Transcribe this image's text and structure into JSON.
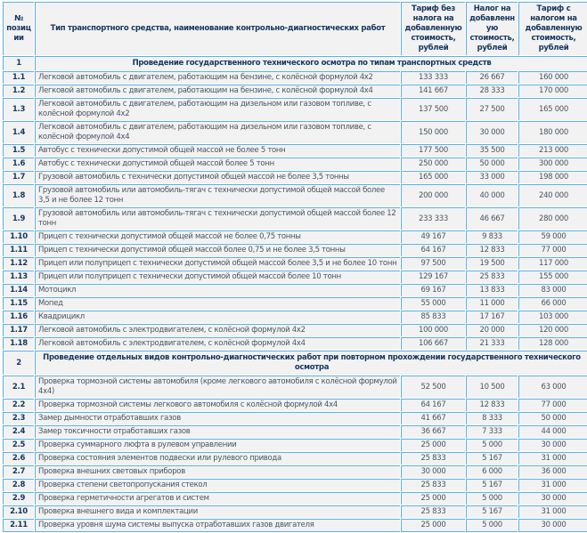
{
  "colors": {
    "border": "#58b2e3",
    "cell_background": "#f2f2f2",
    "heading_text": "#17375e",
    "body_text": "#4a5560"
  },
  "table": {
    "columns": [
      {
        "label": "№ позиции"
      },
      {
        "label": "Тип транспортного средства, наименование контрольно-диагностических работ"
      },
      {
        "label": "Тариф без налога на добавленную стоимость, рублей"
      },
      {
        "label": "Налог на добавленную стоимость, рублей"
      },
      {
        "label": "Тариф с налогом на добавленную стоимость, рублей"
      }
    ],
    "sections": [
      {
        "num": "1",
        "title": "Проведение государственного технического осмотра по типам транспортных средств",
        "rows": [
          {
            "num": "1.1",
            "name": "Легковой автомобиль с двигателем, работающим на бензине, с колёсной формулой 4x2",
            "tariff_no_vat": "133 333",
            "vat": "26 667",
            "tariff_with_vat": "160 000"
          },
          {
            "num": "1.2",
            "name": "Легковой автомобиль с двигателем, работающим на бензине, с колёсной формулой 4x4",
            "tariff_no_vat": "141 667",
            "vat": "28 333",
            "tariff_with_vat": "170 000"
          },
          {
            "num": "1.3",
            "name": "Легковой автомобиль с двигателем, работающим на дизельном или газовом топливе, с колёсной формулой 4x2",
            "tariff_no_vat": "137 500",
            "vat": "27 500",
            "tariff_with_vat": "165 000"
          },
          {
            "num": "1.4",
            "name": "Легковой автомобиль с двигателем, работающим на дизельном или газовом топливе, с колёсной формулой 4x4",
            "tariff_no_vat": "150 000",
            "vat": "30 000",
            "tariff_with_vat": "180 000"
          },
          {
            "num": "1.5",
            "name": "Автобус с технически допустимой общей массой не более 5 тонн",
            "tariff_no_vat": "177 500",
            "vat": "35 500",
            "tariff_with_vat": "213 000"
          },
          {
            "num": "1.6",
            "name": "Автобус с технически допустимой общей массой более 5 тонн",
            "tariff_no_vat": "250 000",
            "vat": "50 000",
            "tariff_with_vat": "300 000"
          },
          {
            "num": "1.7",
            "name": "Грузовой автомобиль с технически допустимой общей массой не более 3,5 тонны",
            "tariff_no_vat": "165 000",
            "vat": "33 000",
            "tariff_with_vat": "198 000"
          },
          {
            "num": "1.8",
            "name": "Грузовой автомобиль или автомобиль-тягач с технически допустимой общей массой более 3,5 и не более 12 тонн",
            "tariff_no_vat": "200 000",
            "vat": "40 000",
            "tariff_with_vat": "240 000"
          },
          {
            "num": "1.9",
            "name": "Грузовой автомобиль или автомобиль-тягач с технически допустимой общей массой более 12 тонн",
            "tariff_no_vat": "233 333",
            "vat": "46 667",
            "tariff_with_vat": "280 000"
          },
          {
            "num": "1.10",
            "name": "Прицеп с технически допустимой общей массой не более 0,75 тонны",
            "tariff_no_vat": "49 167",
            "vat": "9 833",
            "tariff_with_vat": "59 000"
          },
          {
            "num": "1.11",
            "name": "Прицеп с технически допустимой общей массой более 0,75 и не более 3,5 тонны",
            "tariff_no_vat": "64 167",
            "vat": "12 833",
            "tariff_with_vat": "77 000"
          },
          {
            "num": "1.12",
            "name": "Прицеп или полуприцеп с технически допустимой общей массой более 3,5 и не более 10 тонн",
            "tariff_no_vat": "97 500",
            "vat": "19 500",
            "tariff_with_vat": "117 000"
          },
          {
            "num": "1.13",
            "name": "Прицеп или полуприцеп с технически допустимой общей массой более 10 тонн",
            "tariff_no_vat": "129 167",
            "vat": "25 833",
            "tariff_with_vat": "155 000"
          },
          {
            "num": "1.14",
            "name": "Мотоцикл",
            "tariff_no_vat": "69 167",
            "vat": "13 833",
            "tariff_with_vat": "83 000"
          },
          {
            "num": "1.15",
            "name": "Мопед",
            "tariff_no_vat": "55 000",
            "vat": "11 000",
            "tariff_with_vat": "66 000"
          },
          {
            "num": "1.16",
            "name": "Квадрицикл",
            "tariff_no_vat": "85 833",
            "vat": "17 167",
            "tariff_with_vat": "103 000"
          },
          {
            "num": "1.17",
            "name": "Легковой автомобиль с электродвигателем, с колёсной формулой 4x2",
            "tariff_no_vat": "100 000",
            "vat": "20 000",
            "tariff_with_vat": "120 000"
          },
          {
            "num": "1.18",
            "name": "Легковой автомобиль с электродвигателем, с колёсной формулой 4x4",
            "tariff_no_vat": "106 667",
            "vat": "21 333",
            "tariff_with_vat": "128 000"
          }
        ]
      },
      {
        "num": "2",
        "title": "Проведение отдельных видов контрольно-диагностических работ при повторном прохождении государственного технического осмотра",
        "rows": [
          {
            "num": "2.1",
            "name": "Проверка тормозной системы автомобиля (кроме легкового автомобиля с колёсной формулой 4x4)",
            "tariff_no_vat": "52 500",
            "vat": "10 500",
            "tariff_with_vat": "63 000"
          },
          {
            "num": "2.2",
            "name": "Проверка тормозной системы легкового автомобиля с колёсной формулой 4x4",
            "tariff_no_vat": "64 167",
            "vat": "12 833",
            "tariff_with_vat": "77 000"
          },
          {
            "num": "2.3",
            "name": "Замер дымности отработавших газов",
            "tariff_no_vat": "41 667",
            "vat": "8 333",
            "tariff_with_vat": "50 000"
          },
          {
            "num": "2.4",
            "name": "Замер токсичности отработавших газов",
            "tariff_no_vat": "36 667",
            "vat": "7 333",
            "tariff_with_vat": "44 000"
          },
          {
            "num": "2.5",
            "name": "Проверка суммарного люфта в рулевом управлении",
            "tariff_no_vat": "25 000",
            "vat": "5 000",
            "tariff_with_vat": "30 000"
          },
          {
            "num": "2.6",
            "name": "Проверка состояния элементов подвески или рулевого привода",
            "tariff_no_vat": "25 833",
            "vat": "5 167",
            "tariff_with_vat": "31 000"
          },
          {
            "num": "2.7",
            "name": "Проверка внешних световых приборов",
            "tariff_no_vat": "30 000",
            "vat": "6 000",
            "tariff_with_vat": "36 000"
          },
          {
            "num": "2.8",
            "name": "Проверка степени светопропускания стекол",
            "tariff_no_vat": "25 833",
            "vat": "5 167",
            "tariff_with_vat": "31 000"
          },
          {
            "num": "2.9",
            "name": "Проверка герметичности агрегатов и систем",
            "tariff_no_vat": "25 000",
            "vat": "5 000",
            "tariff_with_vat": "30 000"
          },
          {
            "num": "2.10",
            "name": "Проверка внешнего вида и комплектации",
            "tariff_no_vat": "25 833",
            "vat": "5 167",
            "tariff_with_vat": "31 000"
          },
          {
            "num": "2.11",
            "name": "Проверка уровня шума системы выпуска отработавших газов двигателя",
            "tariff_no_vat": "25 000",
            "vat": "5 000",
            "tariff_with_vat": "30 000"
          }
        ]
      }
    ]
  }
}
